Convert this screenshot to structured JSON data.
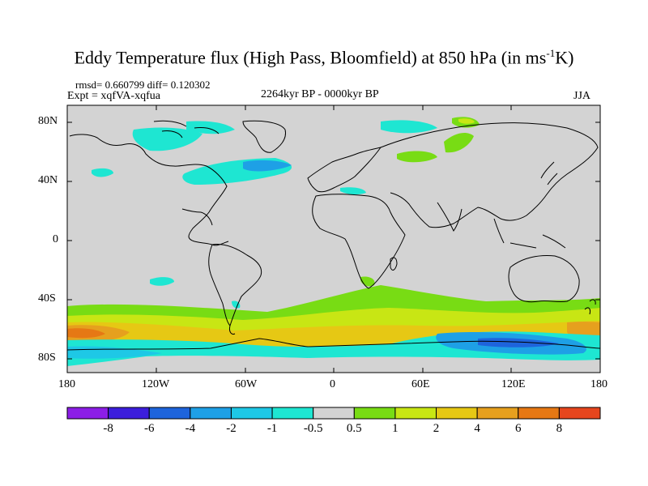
{
  "figure": {
    "title_main": "Eddy Temperature flux (High Pass, Bloomfield) at 850 hPa (in ms",
    "title_sup": "-1",
    "title_tail": "K)",
    "rmsd_text": "rmsd= 0.660799 diff= 0.120302",
    "expt_text": "Expt = xqfVA-xqfua",
    "period_text": "2264kyr BP - 0000kyr BP",
    "season_text": "JJA"
  },
  "map": {
    "lat_ticks": [
      "80N",
      "40N",
      "0",
      "40S",
      "80S"
    ],
    "lon_ticks": [
      "180",
      "120W",
      "60W",
      "0",
      "60E",
      "120E",
      "180"
    ],
    "ocean_color": "#d3d3d3"
  },
  "colorbar": {
    "colors": [
      "#8c1ee6",
      "#3c1edc",
      "#1e64dc",
      "#1ea0e6",
      "#1ec8e6",
      "#1ee6d2",
      "#d3d3d3",
      "#78dc14",
      "#c8e614",
      "#e6c814",
      "#e6a01e",
      "#e67814",
      "#e6461e"
    ],
    "labels": [
      "-8",
      "-6",
      "-4",
      "-2",
      "-1",
      "-0.5",
      "0.5",
      "1",
      "2",
      "4",
      "6",
      "8"
    ]
  }
}
